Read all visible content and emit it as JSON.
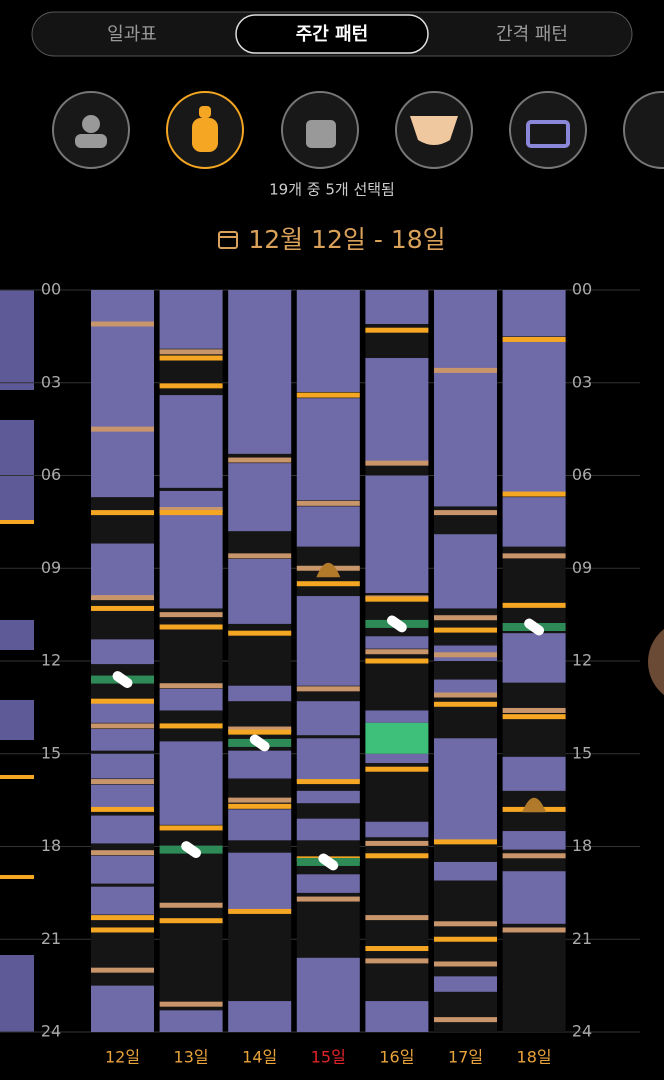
{
  "ui": {
    "tabs": [
      "일과표",
      "주간 패턴",
      "간격 패턴"
    ],
    "selected_tab": 1,
    "selection_text": "19개 중 5개 선택됨",
    "date_range": "12월 12일 - 18일"
  },
  "chart_data": {
    "type": "timeline",
    "ylim": [
      0,
      24
    ],
    "yticks": [
      {
        "value": 0,
        "label": "00"
      },
      {
        "value": 3,
        "label": "03"
      },
      {
        "value": 6,
        "label": "06"
      },
      {
        "value": 9,
        "label": "09"
      },
      12,
      15,
      18,
      21,
      24
    ],
    "grid": true,
    "sleep_color": "#6f6aa8",
    "feed_color": "#f5a623",
    "feed_alt_color": "#c9956b",
    "medicine_color": "#2e8b57",
    "poop_color": "#b07a2a",
    "other_color": "#3fc07a",
    "days": [
      {
        "label": "12일",
        "label_color": "#e8a33a",
        "sleep": [
          [
            0,
            6.7
          ],
          [
            8.2,
            9.9
          ],
          [
            11.3,
            12.1
          ],
          [
            13.3,
            14.0
          ],
          [
            14.2,
            14.9
          ],
          [
            15.0,
            15.8
          ],
          [
            16.0,
            16.8
          ],
          [
            17.0,
            17.9
          ],
          [
            18.3,
            19.2
          ],
          [
            19.3,
            20.2
          ],
          [
            22.5,
            24
          ]
        ],
        "feed": [
          7.2,
          10.3,
          13.3,
          16.8,
          20.3,
          20.7
        ],
        "feed_alt": [
          1.1,
          4.5,
          9.95,
          14.1,
          15.9,
          18.2,
          22.0
        ],
        "medicine": [
          12.6
        ],
        "poop": [],
        "other": []
      },
      {
        "label": "13일",
        "label_color": "#e8a33a",
        "sleep": [
          [
            0,
            1.9
          ],
          [
            3.4,
            6.4
          ],
          [
            6.5,
            10.3
          ],
          [
            12.9,
            13.6
          ],
          [
            14.6,
            17.3
          ],
          [
            23.3,
            24
          ]
        ],
        "feed": [
          2.2,
          3.1,
          7.2,
          10.9,
          14.1,
          17.4,
          20.4
        ],
        "feed_alt": [
          2.0,
          7.1,
          10.5,
          12.8,
          19.9,
          23.1
        ],
        "medicine": [
          18.1
        ],
        "poop": [],
        "other": []
      },
      {
        "label": "14일",
        "label_color": "#e8a33a",
        "sleep": [
          [
            0,
            5.3
          ],
          [
            5.6,
            7.8
          ],
          [
            8.7,
            10.8
          ],
          [
            12.8,
            13.3
          ],
          [
            14.9,
            15.8
          ],
          [
            16.8,
            17.8
          ],
          [
            18.2,
            20.1
          ],
          [
            23.0,
            24
          ]
        ],
        "feed": [
          11.1,
          14.3,
          16.7,
          20.1
        ],
        "feed_alt": [
          5.5,
          8.6,
          14.2,
          16.5
        ],
        "medicine": [
          14.65
        ],
        "poop": [],
        "other": []
      },
      {
        "label": "15일",
        "label_color": "#e0242b",
        "sleep": [
          [
            0,
            3.3
          ],
          [
            3.5,
            6.8
          ],
          [
            7.0,
            8.3
          ],
          [
            9.9,
            12.8
          ],
          [
            13.3,
            14.4
          ],
          [
            14.5,
            15.9
          ],
          [
            16.2,
            16.6
          ],
          [
            17.1,
            17.8
          ],
          [
            18.9,
            19.5
          ],
          [
            21.6,
            24
          ]
        ],
        "feed": [
          3.4,
          9.5,
          15.9,
          18.4
        ],
        "feed_alt": [
          6.9,
          9.0,
          12.9,
          19.7
        ],
        "medicine": [
          18.5
        ],
        "poop": [
          9.0
        ],
        "other": []
      },
      {
        "label": "16일",
        "label_color": "#e8a33a",
        "sleep": [
          [
            0,
            1.1
          ],
          [
            2.2,
            5.6
          ],
          [
            6.0,
            9.8
          ],
          [
            11.2,
            11.6
          ],
          [
            13.6,
            14.0
          ],
          [
            15.0,
            15.3
          ],
          [
            17.2,
            17.7
          ],
          [
            23.0,
            24
          ]
        ],
        "feed": [
          1.3,
          10.0,
          12.0,
          15.5,
          18.3,
          21.3
        ],
        "feed_alt": [
          5.6,
          9.96,
          11.7,
          17.9,
          20.3,
          21.7
        ],
        "medicine": [
          10.8
        ],
        "poop": [],
        "other": [
          [
            14.0,
            15.0
          ]
        ]
      },
      {
        "label": "17일",
        "label_color": "#e8a33a",
        "sleep": [
          [
            0,
            7.0
          ],
          [
            7.9,
            10.3
          ],
          [
            11.5,
            12.0
          ],
          [
            12.6,
            13.1
          ],
          [
            14.5,
            17.8
          ],
          [
            18.5,
            19.1
          ],
          [
            22.2,
            22.7
          ]
        ],
        "feed": [
          11.0,
          13.4,
          17.85,
          21.0
        ],
        "feed_alt": [
          2.6,
          7.2,
          10.6,
          11.8,
          13.1,
          20.5,
          21.8,
          23.6
        ],
        "medicine": [],
        "poop": [],
        "other": []
      },
      {
        "label": "18일",
        "label_color": "#e8a33a",
        "sleep": [
          [
            0,
            1.5
          ],
          [
            1.6,
            6.6
          ],
          [
            6.7,
            8.3
          ],
          [
            11.1,
            12.7
          ],
          [
            15.1,
            16.2
          ],
          [
            17.5,
            18.1
          ],
          [
            18.8,
            20.5
          ]
        ],
        "feed": [
          1.6,
          6.6,
          10.2,
          13.8,
          16.8
        ],
        "feed_alt": [
          8.6,
          13.6,
          18.3,
          20.7
        ],
        "medicine": [
          10.9
        ],
        "poop": [
          16.6
        ],
        "other": []
      }
    ]
  }
}
